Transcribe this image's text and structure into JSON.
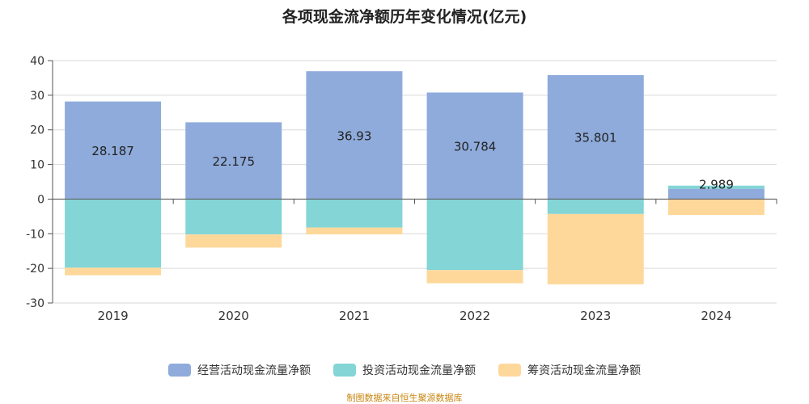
{
  "chart_data": {
    "type": "bar",
    "stacked": true,
    "title": "各项现金流净额历年变化情况(亿元)",
    "categories": [
      "2019",
      "2020",
      "2021",
      "2022",
      "2023",
      "2024"
    ],
    "ylim": [
      -30,
      40
    ],
    "yticks": [
      -30,
      -20,
      -10,
      0,
      10,
      20,
      30,
      40
    ],
    "grid": true,
    "legend_position": "bottom",
    "series": [
      {
        "name": "经营活动现金流量净额",
        "color": "#8eabdb",
        "values": [
          28.187,
          22.175,
          36.93,
          30.784,
          35.801,
          2.989
        ],
        "labels": [
          "28.187",
          "22.175",
          "36.93",
          "30.784",
          "35.801",
          "2.989"
        ]
      },
      {
        "name": "投资活动现金流量净额",
        "color": "#83d5d6",
        "values": [
          -19.8,
          -10.2,
          -8.2,
          -20.5,
          -4.3,
          0.9
        ]
      },
      {
        "name": "筹资活动现金流量净额",
        "color": "#fed89b",
        "values": [
          -2.2,
          -3.8,
          -2.0,
          -3.8,
          -20.3,
          -4.6
        ]
      }
    ]
  },
  "source": "制图数据来自恒生聚源数据库"
}
